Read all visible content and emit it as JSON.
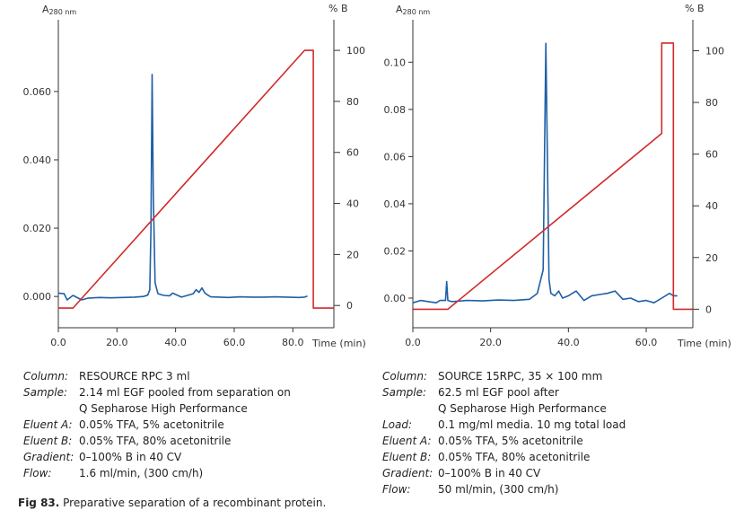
{
  "figure": {
    "caption_label": "Fig 83.",
    "caption_text": " Preparative separation of a recombinant protein."
  },
  "colors": {
    "uv": "#1f5fa6",
    "gradient": "#d12a2a",
    "axis": "#333333"
  },
  "chart_data": [
    {
      "type": "line",
      "title": "",
      "xlabel": "Time (min)",
      "ylabel_left": "A",
      "ylabel_left_sub": "280 nm",
      "ylabel_right": "% B",
      "xlim": [
        0,
        94
      ],
      "ylim_left": [
        -0.006,
        0.081
      ],
      "ylim_right": [
        -4.5,
        112
      ],
      "x_ticks": [
        0,
        20,
        40,
        60,
        80
      ],
      "x_tick_labels": [
        "0.0",
        "20.0",
        "40.0",
        "60.0",
        "80.0"
      ],
      "y_left_ticks": [
        0,
        0.02,
        0.04,
        0.06
      ],
      "y_left_tick_labels": [
        "0.000",
        "0.020",
        "0.040",
        "0.060"
      ],
      "y_right_ticks": [
        0,
        20,
        40,
        60,
        80,
        100
      ],
      "y_right_tick_labels": [
        "0",
        "20",
        "40",
        "60",
        "80",
        "100"
      ],
      "series": [
        {
          "axis": "left",
          "color": "#1f5fa6",
          "x": [
            0,
            2,
            3,
            5,
            8,
            10,
            14,
            18,
            22,
            26,
            29,
            30.5,
            31.2,
            31.6,
            32.0,
            32.4,
            33.0,
            34.0,
            36,
            38,
            39,
            40,
            42,
            44,
            46,
            47,
            48,
            49,
            50,
            51,
            52,
            55,
            58,
            62,
            66,
            70,
            74,
            78,
            82,
            84,
            85
          ],
          "y": [
            0.001,
            0.0008,
            -0.001,
            0.0003,
            -0.001,
            -0.0005,
            -0.0003,
            -0.0004,
            -0.0003,
            -0.0002,
            0.0,
            0.0004,
            0.002,
            0.02,
            0.065,
            0.03,
            0.004,
            0.0008,
            0.0003,
            0.0002,
            0.001,
            0.0006,
            -0.0002,
            0.0003,
            0.0008,
            0.002,
            0.0012,
            0.0025,
            0.001,
            0.0004,
            -0.0001,
            -0.0002,
            -0.0003,
            -0.0001,
            -0.0002,
            -0.0002,
            -0.0001,
            -0.0002,
            -0.0003,
            -0.0002,
            0.0001
          ]
        },
        {
          "axis": "right",
          "color": "#d12a2a",
          "x": [
            0,
            5,
            84,
            87,
            87,
            94
          ],
          "y": [
            -1,
            -1,
            100,
            100,
            -1,
            -1
          ]
        }
      ]
    },
    {
      "type": "line",
      "title": "",
      "xlabel": "Time (min)",
      "ylabel_left": "A",
      "ylabel_left_sub": "280 nm",
      "ylabel_right": "% B",
      "xlim": [
        0,
        72
      ],
      "ylim_left": [
        -0.008,
        0.118
      ],
      "ylim_right": [
        -3,
        112
      ],
      "x_ticks": [
        0,
        20,
        40,
        60
      ],
      "x_tick_labels": [
        "0.0",
        "20.0",
        "40.0",
        "60.0"
      ],
      "y_left_ticks": [
        0,
        0.02,
        0.04,
        0.06,
        0.08,
        0.1
      ],
      "y_left_tick_labels": [
        "0.00",
        "0.02",
        "0.04",
        "0.06",
        "0.08",
        "0.10"
      ],
      "y_right_ticks": [
        0,
        20,
        40,
        60,
        80,
        100
      ],
      "y_right_tick_labels": [
        "0",
        "20",
        "40",
        "60",
        "80",
        "100"
      ],
      "series": [
        {
          "axis": "left",
          "color": "#1f5fa6",
          "x": [
            0,
            2,
            4,
            6,
            7,
            8.4,
            8.7,
            9.0,
            10,
            14,
            18,
            22,
            26,
            30,
            32,
            33.5,
            34.2,
            34.6,
            35.0,
            35.5,
            36.5,
            37.5,
            38.5,
            40,
            42,
            44,
            46,
            48,
            50,
            52,
            54,
            56,
            58,
            60,
            62,
            64,
            66,
            67,
            68
          ],
          "y": [
            -0.002,
            -0.001,
            -0.0015,
            -0.002,
            -0.001,
            -0.001,
            0.007,
            -0.001,
            -0.0015,
            -0.001,
            -0.0012,
            -0.0008,
            -0.001,
            -0.0005,
            0.002,
            0.012,
            0.108,
            0.06,
            0.008,
            0.002,
            0.001,
            0.003,
            0.0,
            0.001,
            0.003,
            -0.001,
            0.001,
            0.0015,
            0.002,
            0.003,
            -0.0005,
            0.0,
            -0.0015,
            -0.001,
            -0.002,
            0.0,
            0.002,
            0.001,
            0.001
          ]
        },
        {
          "axis": "right",
          "color": "#d12a2a",
          "x": [
            0,
            9,
            64,
            64,
            67,
            67,
            72
          ],
          "y": [
            0,
            0,
            68,
            103,
            103,
            0,
            0
          ]
        }
      ]
    }
  ],
  "left_info": {
    "rows": [
      {
        "k": "Column:",
        "v": [
          "RESOURCE RPC 3 ml"
        ]
      },
      {
        "k": "Sample:",
        "v": [
          "2.14 ml EGF pooled from separation on",
          "Q Sepharose High Performance"
        ]
      },
      {
        "k": "Eluent A:",
        "v": [
          "0.05% TFA, 5% acetonitrile"
        ]
      },
      {
        "k": "Eluent B:",
        "v": [
          "0.05% TFA, 80% acetonitrile"
        ]
      },
      {
        "k": "Gradient:",
        "v": [
          "0–100% B in 40 CV"
        ]
      },
      {
        "k": "Flow:",
        "v": [
          "1.6 ml/min, (300 cm/h)"
        ]
      }
    ]
  },
  "right_info": {
    "rows": [
      {
        "k": "Column:",
        "v": [
          "SOURCE 15RPC, 35 × 100 mm"
        ]
      },
      {
        "k": "Sample:",
        "v": [
          "62.5 ml EGF pool after",
          "Q Sepharose High Performance"
        ]
      },
      {
        "k": "Load:",
        "v": [
          "0.1 mg/ml media. 10 mg total load"
        ]
      },
      {
        "k": "Eluent A:",
        "v": [
          "0.05% TFA, 5% acetonitrile"
        ]
      },
      {
        "k": "Eluent B:",
        "v": [
          "0.05% TFA, 80% acetonitrile"
        ]
      },
      {
        "k": "Gradient:",
        "v": [
          "0–100% B in 40 CV"
        ]
      },
      {
        "k": "Flow:",
        "v": [
          "50 ml/min, (300 cm/h)"
        ]
      }
    ]
  }
}
